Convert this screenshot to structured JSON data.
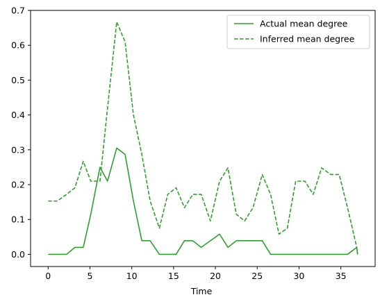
{
  "chart_data": {
    "type": "line",
    "title": "",
    "xlabel": "Time",
    "ylabel": "",
    "xlim": [
      -2.1,
      39.1
    ],
    "ylim": [
      -0.035,
      0.7
    ],
    "xticks": [
      "0",
      "5",
      "10",
      "15",
      "20",
      "25",
      "30",
      "35"
    ],
    "yticks": [
      "0.0",
      "0.1",
      "0.2",
      "0.3",
      "0.4",
      "0.5",
      "0.6",
      "0.7"
    ],
    "grid": false,
    "legend_position": "top-right",
    "color": "#2ca02c",
    "series": [
      {
        "name": "Actual mean degree",
        "style": "solid",
        "x": [
          0,
          1.1,
          2.2,
          3.2,
          4.2,
          5.1,
          6.2,
          7.1,
          8.2,
          9.2,
          10.2,
          11.2,
          12.2,
          13.3,
          14.3,
          15.3,
          16.3,
          17.3,
          18.3,
          19.4,
          20.5,
          21.5,
          22.5,
          23.5,
          24.5,
          25.6,
          26.6,
          27.6,
          28.6,
          29.6,
          30.7,
          31.7,
          32.7,
          33.8,
          34.8,
          35.8,
          36.9,
          37.0
        ],
        "y": [
          0,
          0,
          0,
          0.02,
          0.02,
          0.115,
          0.25,
          0.21,
          0.305,
          0.287,
          0.153,
          0.039,
          0.039,
          0,
          0,
          0,
          0.039,
          0.039,
          0.02,
          0.039,
          0.058,
          0.02,
          0.039,
          0.039,
          0.039,
          0.039,
          0,
          0,
          0,
          0,
          0,
          0,
          0,
          0,
          0,
          0,
          0.02,
          0
        ]
      },
      {
        "name": "Inferred mean degree",
        "style": "dashed",
        "x": [
          0,
          1.1,
          2.2,
          3.2,
          4.2,
          5.1,
          6.2,
          7.1,
          8.2,
          9.2,
          10.2,
          11.2,
          12.2,
          13.3,
          14.3,
          15.3,
          16.3,
          17.3,
          18.3,
          19.4,
          20.5,
          21.5,
          22.5,
          23.5,
          24.5,
          25.6,
          26.6,
          27.6,
          28.6,
          29.6,
          30.7,
          31.7,
          32.7,
          33.8,
          34.8,
          35.8,
          36.9,
          37.0
        ],
        "y": [
          0.153,
          0.153,
          0.172,
          0.191,
          0.267,
          0.21,
          0.21,
          0.42,
          0.667,
          0.61,
          0.4,
          0.287,
          0.153,
          0.075,
          0.172,
          0.191,
          0.134,
          0.172,
          0.172,
          0.096,
          0.21,
          0.248,
          0.115,
          0.096,
          0.134,
          0.229,
          0.172,
          0.058,
          0.075,
          0.21,
          0.21,
          0.172,
          0.248,
          0.229,
          0.229,
          0.134,
          0.02,
          0.0
        ]
      }
    ]
  }
}
